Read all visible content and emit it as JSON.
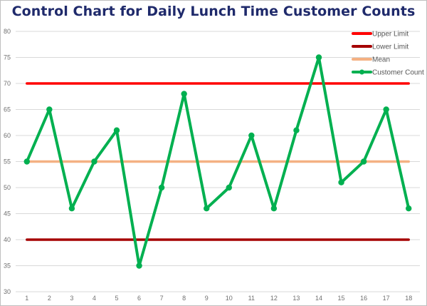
{
  "chart_data": {
    "type": "line",
    "title": "Control Chart for Daily Lunch Time Customer Counts",
    "xlabel": "",
    "ylabel": "",
    "x": [
      1,
      2,
      3,
      4,
      5,
      6,
      7,
      8,
      9,
      10,
      11,
      12,
      13,
      14,
      15,
      16,
      17,
      18
    ],
    "ylim": [
      30,
      80
    ],
    "yticks": [
      30,
      35,
      40,
      45,
      50,
      55,
      60,
      65,
      70,
      75,
      80
    ],
    "grid": true,
    "legend_position": "top-right",
    "series": [
      {
        "name": "Upper Limit",
        "color": "#ff0000",
        "values": [
          70,
          70,
          70,
          70,
          70,
          70,
          70,
          70,
          70,
          70,
          70,
          70,
          70,
          70,
          70,
          70,
          70,
          70
        ]
      },
      {
        "name": "Lower Limit",
        "color": "#a50000",
        "values": [
          40,
          40,
          40,
          40,
          40,
          40,
          40,
          40,
          40,
          40,
          40,
          40,
          40,
          40,
          40,
          40,
          40,
          40
        ]
      },
      {
        "name": "Mean",
        "color": "#f4b183",
        "values": [
          55,
          55,
          55,
          55,
          55,
          55,
          55,
          55,
          55,
          55,
          55,
          55,
          55,
          55,
          55,
          55,
          55,
          55
        ]
      },
      {
        "name": "Customer Count",
        "color": "#00b050",
        "markers": true,
        "values": [
          55,
          65,
          46,
          55,
          61,
          35,
          50,
          68,
          46,
          50,
          60,
          46,
          61,
          75,
          51,
          55,
          65,
          46
        ]
      }
    ]
  }
}
